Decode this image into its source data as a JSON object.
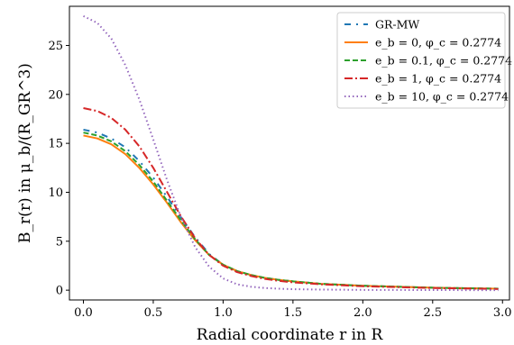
{
  "chart_data": {
    "type": "line",
    "xlabel": "Radial coordinate r in R",
    "ylabel": "B_r(r) in μ_b/(R_GR^3)",
    "xlim": [
      -0.1,
      3.05
    ],
    "ylim": [
      -1.0,
      29.0
    ],
    "x_ticks": [
      0.0,
      0.5,
      1.0,
      1.5,
      2.0,
      2.5,
      3.0
    ],
    "x_tick_labels": [
      "0.0",
      "0.5",
      "1.0",
      "1.5",
      "2.0",
      "2.5",
      "3.0"
    ],
    "y_ticks": [
      0,
      5,
      10,
      15,
      20,
      25
    ],
    "y_tick_labels": [
      "0",
      "5",
      "10",
      "15",
      "20",
      "25"
    ],
    "grid": false,
    "legend_position": "top-right",
    "series": [
      {
        "name": "GR-MW",
        "legend_label": "GR-MW",
        "color": "#1f77b4",
        "dash": "dashdot-sparse",
        "x": [
          0.0,
          0.1,
          0.2,
          0.3,
          0.4,
          0.5,
          0.6,
          0.7,
          0.8,
          0.9,
          1.0,
          1.1,
          1.2,
          1.3,
          1.4,
          1.5,
          1.7,
          2.0,
          2.5,
          2.97
        ],
        "y": [
          16.4,
          16.1,
          15.5,
          14.6,
          13.2,
          11.5,
          9.5,
          7.4,
          5.4,
          3.7,
          2.6,
          1.95,
          1.55,
          1.25,
          1.05,
          0.9,
          0.65,
          0.45,
          0.25,
          0.15
        ]
      },
      {
        "name": "e_b = 0, φ_c = 0.2774",
        "legend_label": "e_b = 0, φ_c = 0.2774",
        "color": "#ff7f0e",
        "dash": "solid",
        "x": [
          0.0,
          0.1,
          0.2,
          0.3,
          0.4,
          0.5,
          0.6,
          0.7,
          0.8,
          0.9,
          1.0,
          1.1,
          1.2,
          1.3,
          1.4,
          1.5,
          1.7,
          2.0,
          2.5,
          2.97
        ],
        "y": [
          15.8,
          15.5,
          14.9,
          13.9,
          12.5,
          10.8,
          8.9,
          6.9,
          5.1,
          3.6,
          2.6,
          1.95,
          1.55,
          1.25,
          1.05,
          0.9,
          0.65,
          0.45,
          0.25,
          0.15
        ]
      },
      {
        "name": "e_b = 0.1, φ_c = 0.2774",
        "legend_label": "e_b = 0.1, φ_c = 0.2774",
        "color": "#2ca02c",
        "dash": "dashed",
        "x": [
          0.0,
          0.1,
          0.2,
          0.3,
          0.4,
          0.5,
          0.6,
          0.7,
          0.8,
          0.9,
          1.0,
          1.1,
          1.2,
          1.3,
          1.4,
          1.5,
          1.7,
          2.0,
          2.5,
          2.97
        ],
        "y": [
          16.1,
          15.8,
          15.2,
          14.2,
          12.8,
          11.1,
          9.1,
          7.1,
          5.2,
          3.6,
          2.6,
          1.95,
          1.55,
          1.25,
          1.05,
          0.9,
          0.65,
          0.45,
          0.25,
          0.15
        ]
      },
      {
        "name": "e_b = 1, φ_c = 0.2774",
        "legend_label": "e_b = 1, φ_c = 0.2774",
        "color": "#d62728",
        "dash": "dashdot",
        "x": [
          0.0,
          0.1,
          0.2,
          0.3,
          0.4,
          0.5,
          0.6,
          0.7,
          0.8,
          0.9,
          1.0,
          1.1,
          1.2,
          1.3,
          1.4,
          1.5,
          1.7,
          2.0,
          2.5,
          2.97
        ],
        "y": [
          18.6,
          18.3,
          17.6,
          16.4,
          14.7,
          12.5,
          10.0,
          7.5,
          5.3,
          3.6,
          2.5,
          1.85,
          1.45,
          1.15,
          0.95,
          0.8,
          0.6,
          0.4,
          0.22,
          0.12
        ]
      },
      {
        "name": "e_b = 10, φ_c = 0.2774",
        "legend_label": "e_b = 10, φ_c = 0.2774",
        "color": "#9467bd",
        "dash": "dotted",
        "x": [
          0.0,
          0.1,
          0.2,
          0.3,
          0.4,
          0.5,
          0.6,
          0.7,
          0.8,
          0.9,
          1.0,
          1.1,
          1.2,
          1.3,
          1.4,
          1.5,
          1.7,
          2.0,
          2.5,
          2.97
        ],
        "y": [
          28.0,
          27.3,
          25.7,
          23.0,
          19.5,
          15.4,
          11.2,
          7.4,
          4.4,
          2.4,
          1.2,
          0.6,
          0.35,
          0.22,
          0.15,
          0.1,
          0.06,
          0.03,
          0.01,
          0.0
        ]
      }
    ]
  }
}
